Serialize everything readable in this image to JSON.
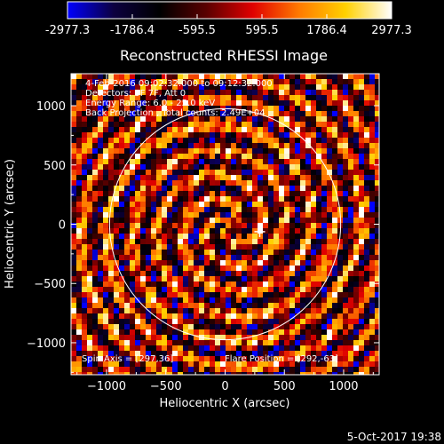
{
  "colors": {
    "background": "#000000",
    "foreground": "#ffffff",
    "colormap": [
      "#0000ff",
      "#0c0040",
      "#000000",
      "#5a0000",
      "#e00000",
      "#ff7a00",
      "#ffd000",
      "#ffffff"
    ]
  },
  "colorbar": {
    "ticks": [
      "-2977.3",
      "-1786.4",
      "-595.5",
      "595.5",
      "1786.4",
      "2977.3"
    ]
  },
  "chart_data": {
    "type": "heatmap",
    "title": "Reconstructed RHESSI Image",
    "xlabel": "Heliocentric X (arcsec)",
    "ylabel": "Heliocentric Y (arcsec)",
    "xlim": [
      -1300,
      1300
    ],
    "ylim": [
      -1270,
      1270
    ],
    "x_ticks": [
      -1000,
      -500,
      0,
      500,
      1000
    ],
    "y_ticks": [
      -1000,
      -500,
      0,
      500,
      1000
    ],
    "x_tick_labels": [
      "−1000",
      "−500",
      "0",
      "500",
      "1000"
    ],
    "y_tick_labels": [
      "−1000",
      "−500",
      "0",
      "500",
      "1000"
    ],
    "value_range": [
      -2977.3,
      2977.3
    ],
    "solar_limb_radius_arcsec": 975,
    "flare_marker": [
      292,
      -63
    ],
    "annotations": [
      "4-Feb-2016 09:02:32.000 to 09:12:32.000",
      "Detectors: 5F 7F, Att 0",
      "Energy Range: 6.0 - 25.0 keV",
      "Back Projection , Total counts: 2.49E+04"
    ],
    "spin_axis": "Spin Axis = [297,36]",
    "flare_position": "Flare Position = [292,-63]"
  },
  "footer": {
    "timestamp": "5-Oct-2017 19:38"
  }
}
